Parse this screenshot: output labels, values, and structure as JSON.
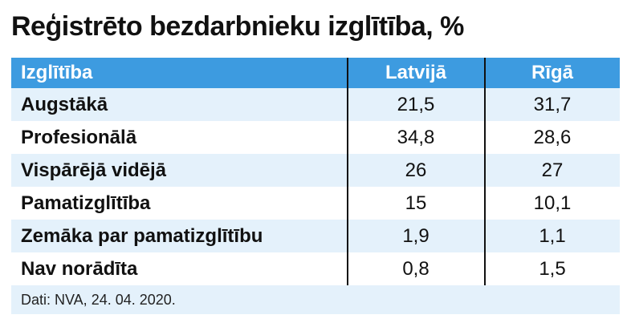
{
  "chart_data": {
    "type": "table",
    "title": "Reģistrēto bezdarbnieku izglītība, %",
    "columns": [
      "Izglītība",
      "Latvijā",
      "Rīgā"
    ],
    "rows": [
      [
        "Augstākā",
        "21,5",
        "31,7"
      ],
      [
        "Profesionālā",
        "34,8",
        "28,6"
      ],
      [
        "Vispārējā vidējā",
        "26",
        "27"
      ],
      [
        "Pamatizglītība",
        "15",
        "10,1"
      ],
      [
        "Zemāka par pamatizglītību",
        "1,9",
        "1,1"
      ],
      [
        "Nav norādīta",
        "0,8",
        "1,5"
      ]
    ],
    "source": "Dati: NVA, 24. 04. 2020."
  },
  "colors": {
    "header_bg": "#3d9be0",
    "stripe_bg": "#e4f1fb"
  }
}
